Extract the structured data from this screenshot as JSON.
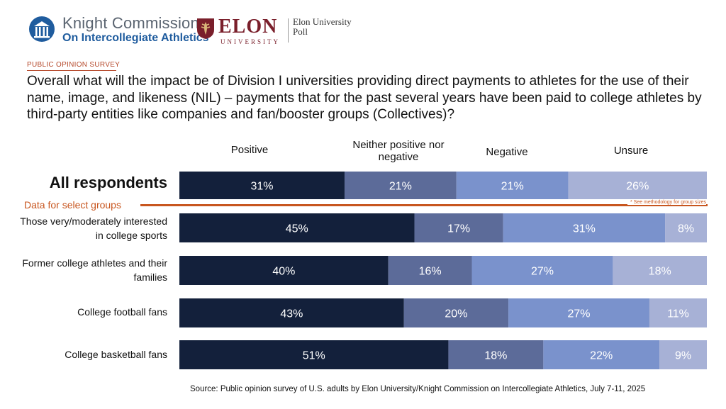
{
  "header": {
    "kc_line1": "Knight Commission",
    "kc_line2": "On Intercollegiate Athletics",
    "elon_word": "ELON",
    "elon_sub": "UNIVERSITY",
    "poll_line1": "Elon University",
    "poll_line2": "Poll"
  },
  "kicker": "PUBLIC OPINION SURVEY",
  "question": "Overall what will the impact be of Division I universities providing direct payments to athletes for the use of their name, image, and likeness (NIL) – payments that for the past several years have been paid to college athletes by third-party entities like companies and fan/booster groups (Collectives)?",
  "select_groups": {
    "label": "Data for select groups",
    "note": "* See methodology for group sizes"
  },
  "source": "Source: Public opinion survey of U.S. adults by Elon University/Knight Commission on Intercollegiate Athletics, July 7-11, 2025",
  "chart_data": {
    "type": "bar",
    "orientation": "horizontal",
    "stacked": true,
    "normalized": "percent",
    "categories": [
      "All respondents",
      "Those very/moderately interested in college sports",
      "Former college athletes and their families",
      "College football fans",
      "College basketball fans"
    ],
    "series": [
      {
        "name": "Positive",
        "values": [
          31,
          45,
          40,
          43,
          51
        ],
        "color": "#13203b",
        "label_color": "#ffffff"
      },
      {
        "name": "Neither positive nor negative",
        "values": [
          21,
          17,
          16,
          20,
          18
        ],
        "color": "#5c6b99",
        "label_color": "#ffffff"
      },
      {
        "name": "Negative",
        "values": [
          21,
          31,
          27,
          27,
          22
        ],
        "color": "#7a92cc",
        "label_color": "#ffffff"
      },
      {
        "name": "Unsure",
        "values": [
          26,
          8,
          18,
          11,
          9
        ],
        "color": "#a7b1d6",
        "label_color": "#ffffff"
      }
    ],
    "data_labels": [
      [
        "31%",
        "21%",
        "21%",
        "26%"
      ],
      [
        "45%",
        "17%",
        "31%",
        "8%"
      ],
      [
        "40%",
        "16%",
        "27%",
        "18%"
      ],
      [
        "43%",
        "20%",
        "27%",
        "11%"
      ],
      [
        "51%",
        "18%",
        "22%",
        "9%"
      ]
    ],
    "legend": "top",
    "grid": false
  }
}
